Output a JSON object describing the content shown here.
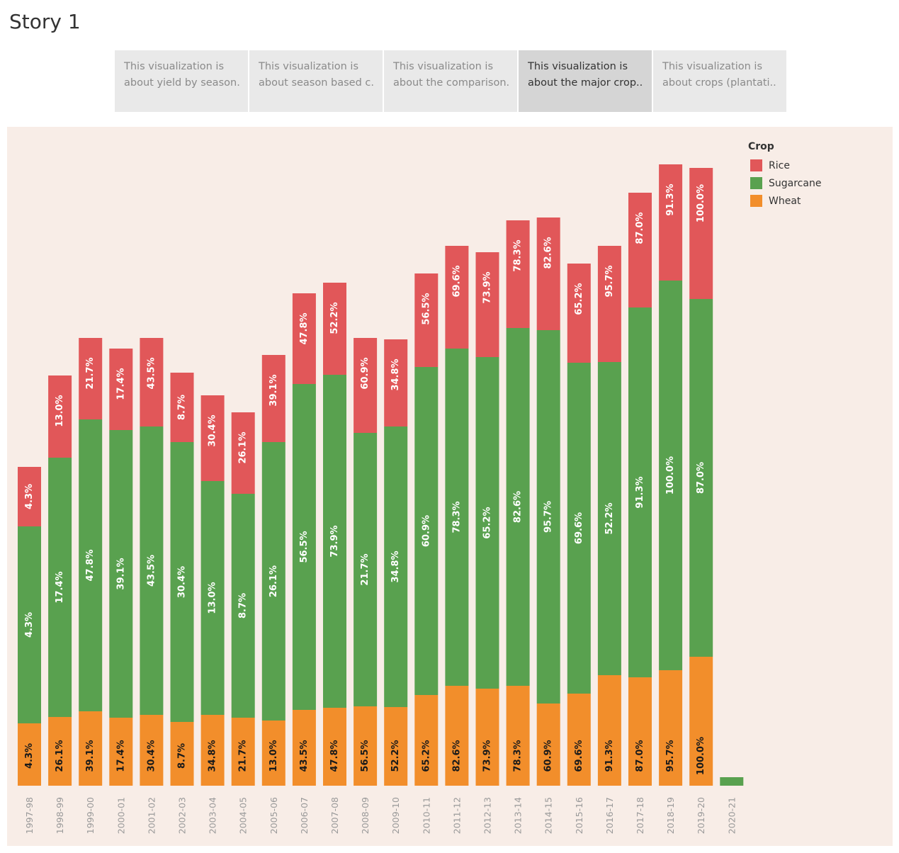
{
  "story": {
    "title": "Story 1",
    "points": [
      {
        "line1": "This visualization is",
        "line2": "about yield by season."
      },
      {
        "line1": "This visualization is",
        "line2": "about season based c.."
      },
      {
        "line1": "This visualization is",
        "line2": "about the comparison.."
      },
      {
        "line1": "This visualization is",
        "line2": "about the major crop.."
      },
      {
        "line1": "This visualization is",
        "line2": "about crops (plantati.."
      }
    ],
    "active_index": 3
  },
  "legend": {
    "title": "Crop",
    "items": [
      {
        "name": "Rice",
        "color": "#e15759"
      },
      {
        "name": "Sugarcane",
        "color": "#59a14f"
      },
      {
        "name": "Wheat",
        "color": "#f28e2b"
      }
    ]
  },
  "chart_data": {
    "type": "bar",
    "stacked": true,
    "orientation": "vertical",
    "categories": [
      "1997-98",
      "1998-99",
      "1999-00",
      "2000-01",
      "2001-02",
      "2002-03",
      "2003-04",
      "2004-05",
      "2005-06",
      "2006-07",
      "2007-08",
      "2008-09",
      "2009-10",
      "2010-11",
      "2011-12",
      "2012-13",
      "2013-14",
      "2014-15",
      "2015-16",
      "2016-17",
      "2017-18",
      "2018-19",
      "2019-20",
      "2020-21"
    ],
    "series": [
      {
        "name": "Wheat",
        "color": "#f28e2b",
        "label_color": "#1a1a1a",
        "values": [
          88,
          97,
          105,
          96,
          100,
          90,
          100,
          96,
          92,
          107,
          110,
          112,
          111,
          128,
          141,
          137,
          141,
          116,
          130,
          156,
          153,
          163,
          182,
          0
        ],
        "labels": [
          "4.3%",
          "26.1%",
          "39.1%",
          "17.4%",
          "30.4%",
          "8.7%",
          "34.8%",
          "21.7%",
          "13.0%",
          "43.5%",
          "47.8%",
          "56.5%",
          "52.2%",
          "65.2%",
          "82.6%",
          "73.9%",
          "78.3%",
          "60.9%",
          "69.6%",
          "91.3%",
          "87.0%",
          "95.7%",
          "100.0%",
          ""
        ]
      },
      {
        "name": "Sugarcane",
        "color": "#59a14f",
        "label_color": "#ffffff",
        "values": [
          278,
          366,
          412,
          406,
          407,
          395,
          330,
          316,
          393,
          460,
          470,
          386,
          396,
          463,
          476,
          468,
          505,
          527,
          467,
          442,
          522,
          550,
          505,
          12
        ],
        "labels": [
          "4.3%",
          "17.4%",
          "47.8%",
          "39.1%",
          "43.5%",
          "30.4%",
          "13.0%",
          "8.7%",
          "26.1%",
          "56.5%",
          "73.9%",
          "21.7%",
          "34.8%",
          "60.9%",
          "78.3%",
          "65.2%",
          "82.6%",
          "95.7%",
          "69.6%",
          "52.2%",
          "91.3%",
          "100.0%",
          "87.0%",
          ""
        ]
      },
      {
        "name": "Rice",
        "color": "#e15759",
        "label_color": "#ffffff",
        "values": [
          84,
          116,
          115,
          115,
          125,
          98,
          121,
          115,
          123,
          128,
          130,
          134,
          123,
          132,
          145,
          148,
          152,
          159,
          140,
          164,
          162,
          164,
          185,
          0
        ],
        "labels": [
          "4.3%",
          "13.0%",
          "21.7%",
          "17.4%",
          "43.5%",
          "8.7%",
          "30.4%",
          "26.1%",
          "39.1%",
          "47.8%",
          "52.2%",
          "60.9%",
          "34.8%",
          "56.5%",
          "69.6%",
          "73.9%",
          "78.3%",
          "82.6%",
          "65.2%",
          "95.7%",
          "87.0%",
          "91.3%",
          "100.0%",
          ""
        ]
      }
    ],
    "ylim": [
      0,
      900
    ],
    "title": "",
    "xlabel": "",
    "ylabel": "",
    "grid": false,
    "legend_placement": "top-right",
    "tick_label_color": "#9a9a9a"
  }
}
